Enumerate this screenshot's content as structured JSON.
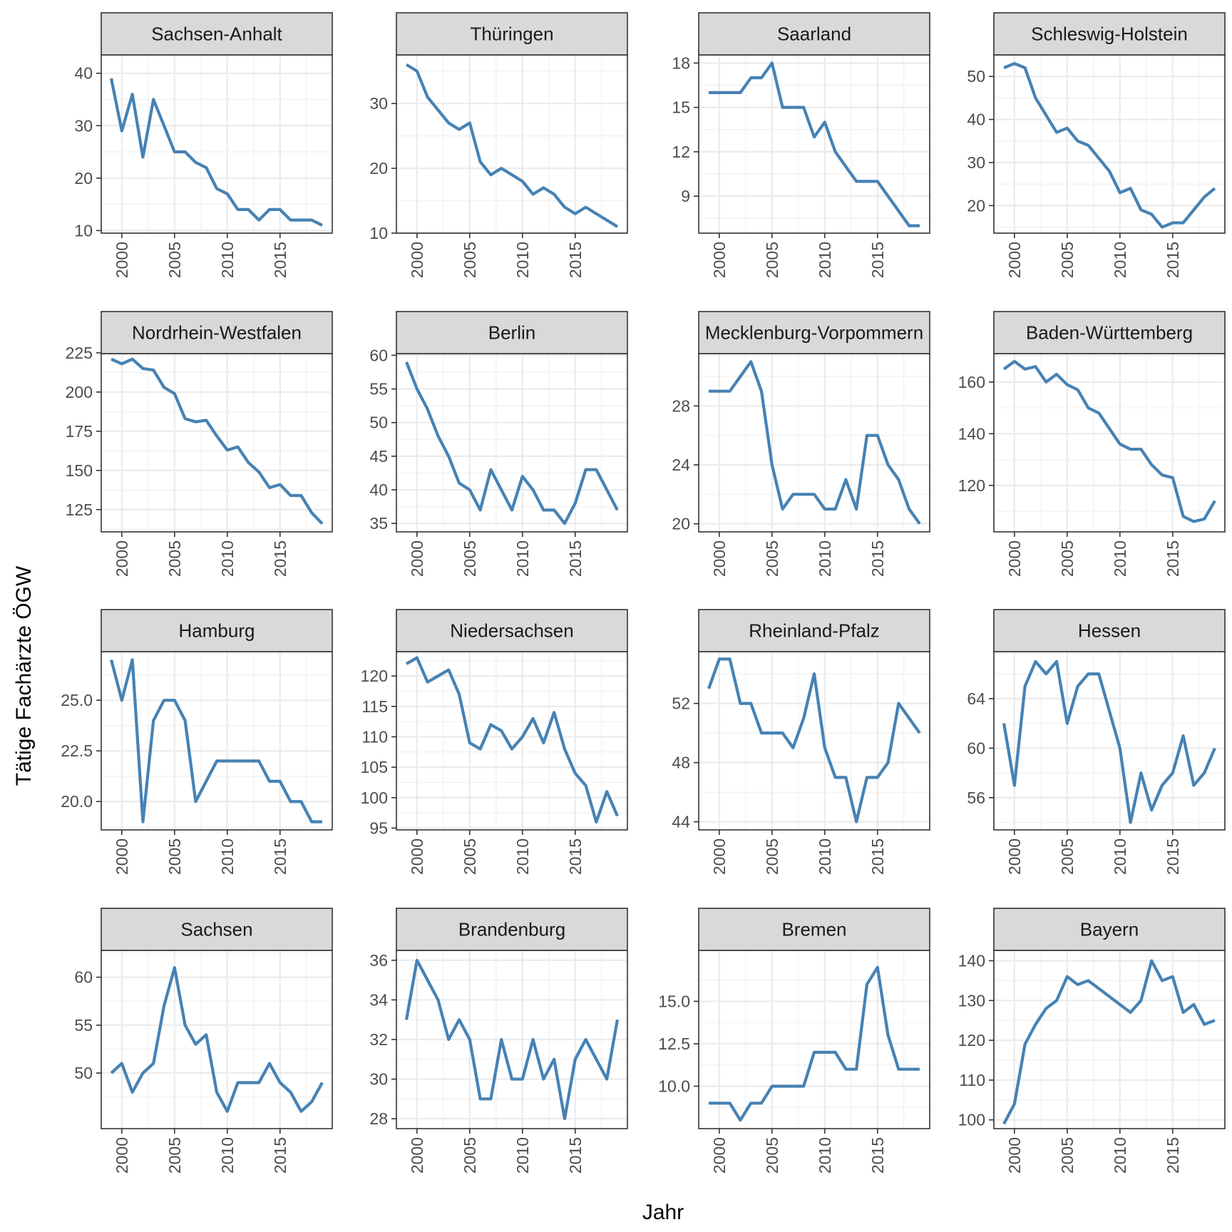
{
  "chart_data": {
    "type": "line",
    "xlabel": "Jahr",
    "ylabel": "Tätige Fachärzte ÖGW",
    "line_color": "#4682b4",
    "strip_fill": "#d9d9d9",
    "grid": true,
    "x_ticks": [
      2000,
      2005,
      2010,
      2015
    ],
    "x": [
      1999,
      2000,
      2001,
      2002,
      2003,
      2004,
      2005,
      2006,
      2007,
      2008,
      2009,
      2010,
      2011,
      2012,
      2013,
      2014,
      2015,
      2016,
      2017,
      2018,
      2019
    ],
    "panels": [
      {
        "title": "Sachsen-Anhalt",
        "ylim": [
          9.5,
          43.5
        ],
        "yticks": [
          10,
          20,
          30,
          40
        ],
        "values": [
          39,
          29,
          36,
          24,
          35,
          30,
          25,
          25,
          23,
          22,
          18,
          17,
          14,
          14,
          12,
          14,
          14,
          12,
          12,
          12,
          11
        ]
      },
      {
        "title": "Thüringen",
        "ylim": [
          10,
          37.5
        ],
        "yticks": [
          10,
          20,
          30
        ],
        "values": [
          36,
          35,
          31,
          29,
          27,
          26,
          27,
          21,
          19,
          20,
          19,
          18,
          16,
          17,
          16,
          14,
          13,
          14,
          13,
          12,
          11
        ]
      },
      {
        "title": "Saarland",
        "ylim": [
          6.5,
          18.55
        ],
        "yticks": [
          9,
          12,
          15,
          18
        ],
        "values": [
          16,
          16,
          16,
          16,
          17,
          17,
          18,
          15,
          15,
          15,
          13,
          14,
          12,
          11,
          10,
          10,
          10,
          9,
          8,
          7,
          7
        ]
      },
      {
        "title": "Schleswig-Holstein",
        "ylim": [
          13.6,
          55
        ],
        "yticks": [
          20,
          30,
          40,
          50
        ],
        "values": [
          52,
          53,
          52,
          45,
          41,
          37,
          38,
          35,
          34,
          31,
          28,
          23,
          24,
          19,
          18,
          15,
          16,
          16,
          19,
          22,
          24
        ]
      },
      {
        "title": "Nordrhein-Westfalen",
        "ylim": [
          110.8,
          224.5
        ],
        "yticks": [
          125,
          150,
          175,
          200,
          225
        ],
        "values": [
          221,
          218,
          221,
          215,
          214,
          203,
          199,
          183,
          181,
          182,
          172,
          163,
          165,
          155,
          149,
          139,
          141,
          134,
          134,
          123,
          116
        ]
      },
      {
        "title": "Berlin",
        "ylim": [
          33.75,
          60.25
        ],
        "yticks": [
          35,
          40,
          45,
          50,
          55,
          60
        ],
        "values": [
          59,
          55,
          52,
          48,
          45,
          41,
          40,
          37,
          43,
          40,
          37,
          42,
          40,
          37,
          37,
          35,
          38,
          43,
          43,
          40,
          37
        ]
      },
      {
        "title": "Mecklenburg-Vorpommern",
        "ylim": [
          19.45,
          31.55
        ],
        "yticks": [
          20,
          24,
          28
        ],
        "values": [
          29,
          29,
          29,
          30,
          31,
          29,
          24,
          21,
          22,
          22,
          22,
          21,
          21,
          23,
          21,
          26,
          26,
          24,
          23,
          21,
          20
        ]
      },
      {
        "title": "Baden-Württemberg",
        "ylim": [
          102,
          171
        ],
        "yticks": [
          120,
          140,
          160
        ],
        "values": [
          165,
          168,
          165,
          166,
          160,
          163,
          159,
          157,
          150,
          148,
          142,
          136,
          134,
          134,
          128,
          124,
          123,
          108,
          106,
          107,
          114
        ]
      },
      {
        "title": "Hamburg",
        "ylim": [
          18.6,
          27.4
        ],
        "yticks": [
          20.0,
          22.5,
          25.0
        ],
        "values": [
          27,
          25,
          27,
          19,
          24,
          25,
          25,
          24,
          20,
          21,
          22,
          22,
          22,
          22,
          22,
          21,
          21,
          20,
          20,
          19,
          19
        ]
      },
      {
        "title": "Niedersachsen",
        "ylim": [
          94.7,
          124.0
        ],
        "yticks": [
          95,
          100,
          105,
          110,
          115,
          120
        ],
        "values": [
          122,
          123,
          119,
          120,
          121,
          117,
          109,
          108,
          112,
          111,
          108,
          110,
          113,
          109,
          114,
          108,
          104,
          102,
          96,
          101,
          97
        ]
      },
      {
        "title": "Rheinland-Pfalz",
        "ylim": [
          43.45,
          55.5
        ],
        "yticks": [
          44,
          48,
          52
        ],
        "values": [
          53,
          55,
          55,
          52,
          52,
          50,
          50,
          50,
          49,
          51,
          54,
          49,
          47,
          47,
          44,
          47,
          47,
          48,
          52,
          51,
          50
        ]
      },
      {
        "title": "Hessen",
        "ylim": [
          53.4,
          67.8
        ],
        "yticks": [
          56,
          60,
          64
        ],
        "values": [
          62,
          57,
          65,
          67,
          66,
          67,
          62,
          65,
          66,
          66,
          63,
          60,
          54,
          58,
          55,
          57,
          58,
          61,
          57,
          58,
          60
        ]
      },
      {
        "title": "Sachsen",
        "ylim": [
          44.2,
          62.8
        ],
        "yticks": [
          50,
          55,
          60
        ],
        "values": [
          50,
          51,
          48,
          50,
          51,
          57,
          61,
          55,
          53,
          54,
          48,
          46,
          49,
          49,
          49,
          51,
          49,
          48,
          46,
          47,
          49
        ]
      },
      {
        "title": "Brandenburg",
        "ylim": [
          27.5,
          36.5
        ],
        "yticks": [
          28,
          30,
          32,
          34,
          36
        ],
        "values": [
          33,
          36,
          35,
          34,
          32,
          33,
          32,
          29,
          29,
          32,
          30,
          30,
          32,
          30,
          31,
          28,
          31,
          32,
          31,
          30,
          33
        ]
      },
      {
        "title": "Bremen",
        "ylim": [
          7.5,
          18.0
        ],
        "yticks": [
          10.0,
          12.5,
          15.0
        ],
        "values": [
          9,
          9,
          9,
          8,
          9,
          9,
          10,
          10,
          10,
          10,
          12,
          12,
          12,
          11,
          11,
          16,
          17,
          13,
          11,
          11,
          11
        ]
      },
      {
        "title": "Bayern",
        "ylim": [
          97.8,
          142.6
        ],
        "yticks": [
          100,
          110,
          120,
          130,
          140
        ],
        "values": [
          99,
          104,
          119,
          124,
          128,
          130,
          136,
          134,
          135,
          133,
          131,
          129,
          127,
          130,
          140,
          135,
          136,
          127,
          129,
          124,
          125
        ]
      }
    ]
  }
}
